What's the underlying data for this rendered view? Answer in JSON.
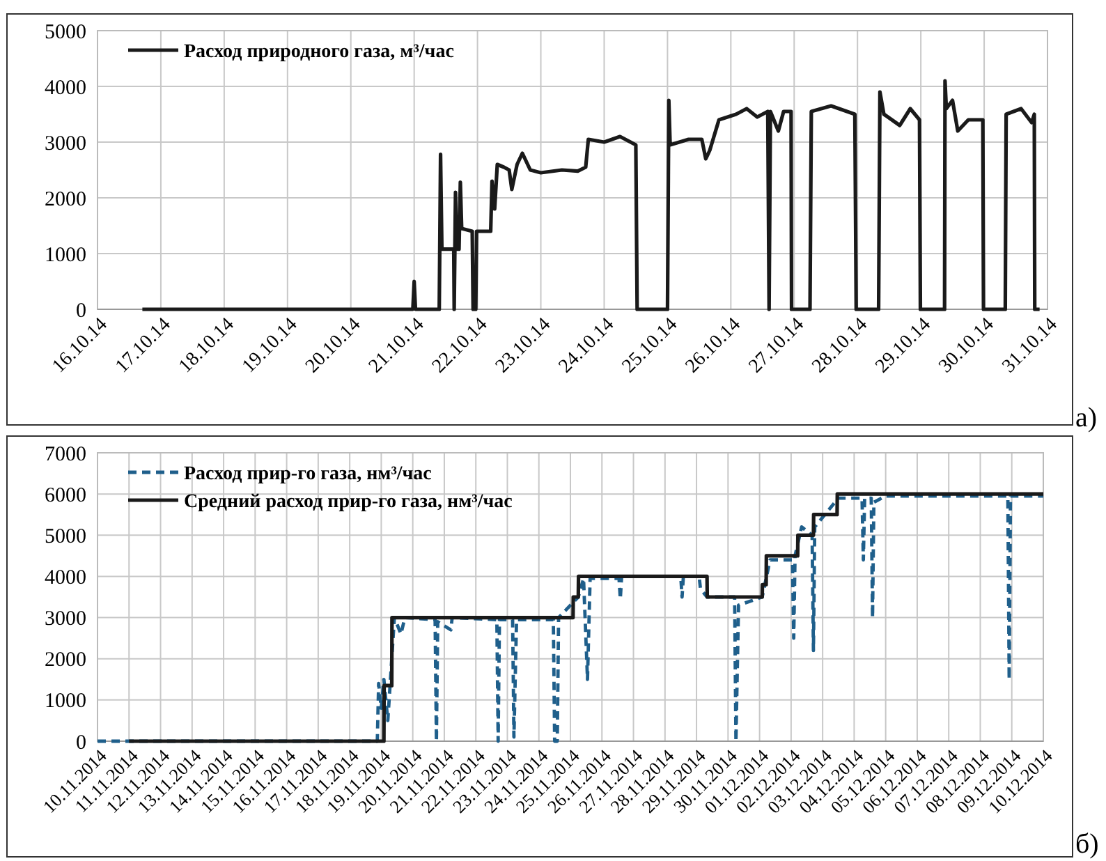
{
  "chart_data": [
    {
      "type": "line",
      "legend": "top left",
      "grid": true,
      "xlim": [
        "2014-10-16",
        "2014-10-31"
      ],
      "ylim": [
        0,
        5000
      ],
      "yticks": [
        0,
        1000,
        2000,
        3000,
        4000,
        5000
      ],
      "xticks": [
        {
          "value": "2014-10-16",
          "label": "16.10.14"
        },
        {
          "value": "2014-10-17",
          "label": "17.10.14"
        },
        {
          "value": "2014-10-18",
          "label": "18.10.14"
        },
        {
          "value": "2014-10-19",
          "label": "19.10.14"
        },
        {
          "value": "2014-10-20",
          "label": "20.10.14"
        },
        {
          "value": "2014-10-21",
          "label": "21.10.14"
        },
        {
          "value": "2014-10-22",
          "label": "22.10.14"
        },
        {
          "value": "2014-10-23",
          "label": "23.10.14"
        },
        {
          "value": "2014-10-24",
          "label": "24.10.14"
        },
        {
          "value": "2014-10-25",
          "label": "25.10.14"
        },
        {
          "value": "2014-10-26",
          "label": "26.10.14"
        },
        {
          "value": "2014-10-27",
          "label": "27.10.14"
        },
        {
          "value": "2014-10-28",
          "label": "28.10.14"
        },
        {
          "value": "2014-10-29",
          "label": "29.10.14"
        },
        {
          "value": "2014-10-30",
          "label": "30.10.14"
        },
        {
          "value": "2014-10-31",
          "label": "31.10.14"
        }
      ],
      "annotations": [
        "а)"
      ],
      "series": [
        {
          "name": "Расход природного газа, м³/час",
          "color": "#1a1a1a",
          "line_style": "solid",
          "x": [
            "2014-10-16T17:00",
            "2014-10-20T23:30",
            "2014-10-21T00:00",
            "2014-10-21T00:30",
            "2014-10-21T09:30",
            "2014-10-21T10:00",
            "2014-10-21T10:30",
            "2014-10-21T15:00",
            "2014-10-21T15:10",
            "2014-10-21T15:40",
            "2014-10-21T16:10",
            "2014-10-21T17:00",
            "2014-10-21T17:30",
            "2014-10-21T18:00",
            "2014-10-21T22:00",
            "2014-10-21T22:20",
            "2014-10-21T23:20",
            "2014-10-21T23:40",
            "2014-10-22T05:00",
            "2014-10-22T05:30",
            "2014-10-22T06:30",
            "2014-10-22T07:30",
            "2014-10-22T10:00",
            "2014-10-22T12:00",
            "2014-10-22T13:00",
            "2014-10-22T15:00",
            "2014-10-22T17:00",
            "2014-10-22T20:00",
            "2014-10-23T00:00",
            "2014-10-23T08:00",
            "2014-10-23T14:00",
            "2014-10-23T17:00",
            "2014-10-23T18:00",
            "2014-10-24T00:00",
            "2014-10-24T06:00",
            "2014-10-24T12:00",
            "2014-10-24T12:30",
            "2014-10-25T00:00",
            "2014-10-25T00:30",
            "2014-10-25T01:00",
            "2014-10-25T08:00",
            "2014-10-25T13:00",
            "2014-10-25T14:30",
            "2014-10-25T16:00",
            "2014-10-25T19:30",
            "2014-10-26T02:00",
            "2014-10-26T06:00",
            "2014-10-26T10:00",
            "2014-10-26T14:00",
            "2014-10-26T14:30",
            "2014-10-26T15:00",
            "2014-10-26T18:00",
            "2014-10-26T20:00",
            "2014-10-26T22:50",
            "2014-10-26T23:00",
            "2014-10-27T06:00",
            "2014-10-27T06:30",
            "2014-10-27T14:00",
            "2014-10-27T23:00",
            "2014-10-27T23:30",
            "2014-10-28T08:00",
            "2014-10-28T08:30",
            "2014-10-28T10:00",
            "2014-10-28T16:00",
            "2014-10-28T20:00",
            "2014-10-28T23:30",
            "2014-10-28T23:50",
            "2014-10-29T09:00",
            "2014-10-29T09:10",
            "2014-10-29T09:40",
            "2014-10-29T12:00",
            "2014-10-29T14:00",
            "2014-10-29T18:00",
            "2014-10-29T23:30",
            "2014-10-29T23:45",
            "2014-10-30T08:00",
            "2014-10-30T08:20",
            "2014-10-30T14:00",
            "2014-10-30T18:00",
            "2014-10-30T19:00",
            "2014-10-30T19:10",
            "2014-10-30T21:00"
          ],
          "values": [
            0,
            0,
            500,
            0,
            0,
            2780,
            1080,
            1080,
            0,
            2100,
            1080,
            1080,
            2280,
            1450,
            1400,
            0,
            0,
            1400,
            1400,
            2300,
            1800,
            2600,
            2550,
            2500,
            2150,
            2600,
            2800,
            2500,
            2450,
            2500,
            2480,
            2550,
            3050,
            3000,
            3100,
            2950,
            0,
            0,
            3750,
            2950,
            3050,
            3050,
            2700,
            2850,
            3400,
            3500,
            3600,
            3450,
            3550,
            0,
            3550,
            3200,
            3550,
            3550,
            0,
            0,
            3550,
            3650,
            3500,
            0,
            0,
            3900,
            3500,
            3300,
            3600,
            3400,
            0,
            0,
            4100,
            3600,
            3750,
            3200,
            3400,
            3400,
            0,
            0,
            3500,
            3600,
            3350,
            3500,
            0,
            0
          ]
        }
      ]
    },
    {
      "type": "line",
      "legend": "top left",
      "grid": true,
      "xlim": [
        "2014-11-10",
        "2014-12-10"
      ],
      "ylim": [
        0,
        7000
      ],
      "yticks": [
        0,
        1000,
        2000,
        3000,
        4000,
        5000,
        6000,
        7000
      ],
      "xticks": [
        {
          "value": "2014-11-10",
          "label": "10.11.2014"
        },
        {
          "value": "2014-11-11",
          "label": "11.11.2014"
        },
        {
          "value": "2014-11-12",
          "label": "12.11.2014"
        },
        {
          "value": "2014-11-13",
          "label": "13.11.2014"
        },
        {
          "value": "2014-11-14",
          "label": "14.11.2014"
        },
        {
          "value": "2014-11-15",
          "label": "15.11.2014"
        },
        {
          "value": "2014-11-16",
          "label": "16.11.2014"
        },
        {
          "value": "2014-11-17",
          "label": "17.11.2014"
        },
        {
          "value": "2014-11-18",
          "label": "18.11.2014"
        },
        {
          "value": "2014-11-19",
          "label": "19.11.2014"
        },
        {
          "value": "2014-11-20",
          "label": "20.11.2014"
        },
        {
          "value": "2014-11-21",
          "label": "21.11.2014"
        },
        {
          "value": "2014-11-22",
          "label": "22.11.2014"
        },
        {
          "value": "2014-11-23",
          "label": "23.11.2014"
        },
        {
          "value": "2014-11-24",
          "label": "24.11.2014"
        },
        {
          "value": "2014-11-25",
          "label": "25.11.2014"
        },
        {
          "value": "2014-11-26",
          "label": "26.11.2014"
        },
        {
          "value": "2014-11-27",
          "label": "27.11.2014"
        },
        {
          "value": "2014-11-28",
          "label": "28.11.2014"
        },
        {
          "value": "2014-11-29",
          "label": "29.11.2014"
        },
        {
          "value": "2014-11-30",
          "label": "30.11.2014"
        },
        {
          "value": "2014-12-01",
          "label": "01.12.2014"
        },
        {
          "value": "2014-12-02",
          "label": "02.12.2014"
        },
        {
          "value": "2014-12-03",
          "label": "03.12.2014"
        },
        {
          "value": "2014-12-04",
          "label": "04.12.2014"
        },
        {
          "value": "2014-12-05",
          "label": "05.12.2014"
        },
        {
          "value": "2014-12-06",
          "label": "06.12.2014"
        },
        {
          "value": "2014-12-07",
          "label": "07.12.2014"
        },
        {
          "value": "2014-12-08",
          "label": "08.12.2014"
        },
        {
          "value": "2014-12-09",
          "label": "09.12.2014"
        },
        {
          "value": "2014-12-10",
          "label": "10.12.2014"
        }
      ],
      "annotations": [
        "б)"
      ],
      "series": [
        {
          "name": "Расход прир-го газа, нм³/час",
          "color": "#1f5f8b",
          "line_style": "dashed",
          "x": [
            "2014-11-10T00:00",
            "2014-11-18T21:00",
            "2014-11-18T22:00",
            "2014-11-19T00:00",
            "2014-11-19T02:00",
            "2014-11-19T05:00",
            "2014-11-19T07:00",
            "2014-11-19T10:00",
            "2014-11-19T15:00",
            "2014-11-19T18:00",
            "2014-11-20T17:00",
            "2014-11-20T18:00",
            "2014-11-20T19:00",
            "2014-11-21T05:00",
            "2014-11-21T06:00",
            "2014-11-22T16:00",
            "2014-11-22T17:00",
            "2014-11-22T18:00",
            "2014-11-23T04:00",
            "2014-11-23T05:00",
            "2014-11-23T07:00",
            "2014-11-24T11:00",
            "2014-11-24T12:00",
            "2014-11-24T14:00",
            "2014-11-24T15:00",
            "2014-11-25T06:00",
            "2014-11-25T10:00",
            "2014-11-25T13:00",
            "2014-11-25T15:00",
            "2014-11-26T13:00",
            "2014-11-26T14:00",
            "2014-11-26T15:00",
            "2014-11-28T12:00",
            "2014-11-28T13:00",
            "2014-11-28T14:00",
            "2014-11-29T02:00",
            "2014-11-29T03:00",
            "2014-11-29T08:00",
            "2014-11-30T05:00",
            "2014-11-30T06:00",
            "2014-11-30T08:00",
            "2014-12-01T02:00",
            "2014-12-01T08:00",
            "2014-12-02T01:00",
            "2014-12-02T02:00",
            "2014-12-02T03:00",
            "2014-12-02T08:00",
            "2014-12-02T16:00",
            "2014-12-02T17:00",
            "2014-12-02T18:00",
            "2014-12-03T12:00",
            "2014-12-04T06:00",
            "2014-12-04T07:00",
            "2014-12-04T08:00",
            "2014-12-04T13:00",
            "2014-12-04T14:00",
            "2014-12-04T15:00",
            "2014-12-05T00:00",
            "2014-12-08T21:00",
            "2014-12-08T22:00",
            "2014-12-08T23:00",
            "2014-12-10T00:00"
          ],
          "values": [
            0,
            0,
            1400,
            800,
            1500,
            500,
            1500,
            3000,
            2600,
            3000,
            2950,
            0,
            2900,
            2700,
            3000,
            2950,
            0,
            2950,
            2950,
            100,
            2950,
            2950,
            0,
            0,
            3000,
            3500,
            3950,
            1500,
            3950,
            3950,
            3450,
            4000,
            4000,
            3500,
            4000,
            4000,
            3700,
            3500,
            3500,
            0,
            3300,
            3500,
            4400,
            4400,
            2500,
            4500,
            5200,
            5000,
            2200,
            5200,
            5900,
            5900,
            4400,
            5900,
            5900,
            3000,
            5800,
            5950,
            5950,
            1500,
            5950,
            5950
          ]
        },
        {
          "name": "Средний расход прир-го газа, нм³/час",
          "color": "#1a1a1a",
          "line_style": "solid",
          "x": [
            "2014-11-11T00:00",
            "2014-11-19T02:00",
            "2014-11-19T02:10",
            "2014-11-19T08:00",
            "2014-11-19T08:10",
            "2014-11-25T02:00",
            "2014-11-25T02:10",
            "2014-11-25T06:00",
            "2014-11-25T06:10",
            "2014-11-29T08:00",
            "2014-11-29T08:10",
            "2014-12-01T02:00",
            "2014-12-01T02:10",
            "2014-12-01T05:00",
            "2014-12-01T05:10",
            "2014-12-02T05:00",
            "2014-12-02T05:10",
            "2014-12-02T17:00",
            "2014-12-02T17:10",
            "2014-12-03T11:00",
            "2014-12-03T11:10",
            "2014-12-10T00:00"
          ],
          "values": [
            0,
            0,
            1350,
            1350,
            3000,
            3000,
            3500,
            3500,
            4000,
            4000,
            3500,
            3500,
            3800,
            3800,
            4500,
            4500,
            5000,
            5000,
            5500,
            5500,
            6000,
            6000
          ]
        }
      ]
    }
  ]
}
